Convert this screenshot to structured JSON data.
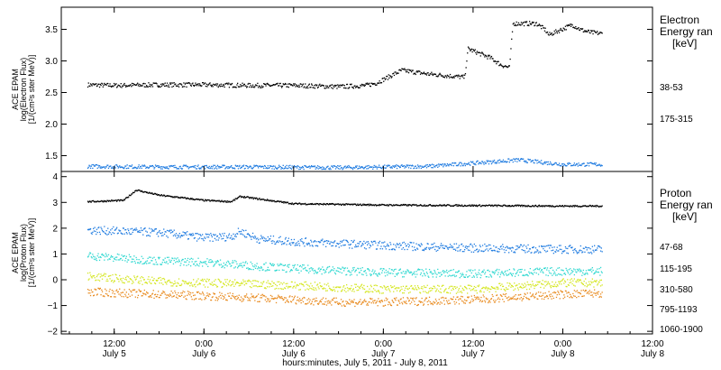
{
  "chart_data": [
    {
      "type": "scatter",
      "panel": "electron",
      "ylabel": [
        "ACE EPAM",
        "log(Electron Flux)",
        "[1/(cm²s ster MeV)]"
      ],
      "ylim": [
        1.25,
        3.85
      ],
      "yticks": [
        1.5,
        2.0,
        2.5,
        3.0,
        3.5
      ],
      "ytick_labels": [
        "1.5",
        "2.0",
        "2.5",
        "3.0",
        "3.5"
      ],
      "legend_title": [
        "Electron",
        "Energy ran",
        "[keV]"
      ],
      "legend_placement": "right",
      "series": [
        {
          "name": "38-53",
          "color": "#000000",
          "x": [
            0.35,
            0.5,
            0.75,
            1.0,
            1.25,
            1.5,
            1.75,
            1.9,
            1.96,
            2.1,
            2.25,
            2.45,
            2.47,
            2.6,
            2.65,
            2.7,
            2.72,
            2.85,
            2.9,
            2.92,
            3.05,
            3.1,
            3.15,
            3.22
          ],
          "values": [
            2.63,
            2.62,
            2.63,
            2.63,
            2.62,
            2.62,
            2.6,
            2.62,
            2.66,
            2.86,
            2.8,
            2.75,
            3.2,
            3.05,
            2.95,
            2.9,
            3.6,
            3.6,
            3.5,
            3.42,
            3.58,
            3.5,
            3.46,
            3.44
          ]
        },
        {
          "name": "175-315",
          "color": "#1e7be0",
          "x": [
            0.35,
            0.75,
            1.25,
            1.75,
            2.25,
            2.75,
            3.0,
            3.22
          ],
          "values": [
            1.34,
            1.33,
            1.33,
            1.32,
            1.34,
            1.44,
            1.37,
            1.37
          ]
        }
      ]
    },
    {
      "type": "scatter",
      "panel": "proton",
      "ylabel": [
        "ACE EPAM",
        "log(Proton Flux)",
        "[1/(cm²s ster MeV)]"
      ],
      "ylim": [
        -2.1,
        4.2
      ],
      "yticks": [
        -2,
        -1,
        0,
        1,
        2,
        3,
        4
      ],
      "ytick_labels": [
        "−2",
        "−1",
        "0",
        "1",
        "2",
        "3",
        "4"
      ],
      "legend_title": [
        "Proton",
        "Energy ran",
        "[keV]"
      ],
      "legend_placement": "right",
      "series": [
        {
          "name": "47-68",
          "color": "#000000",
          "x": [
            0.35,
            0.55,
            0.62,
            0.75,
            1.0,
            1.15,
            1.2,
            1.5,
            2.0,
            2.5,
            3.0,
            3.22
          ],
          "values": [
            3.05,
            3.1,
            3.5,
            3.3,
            3.1,
            3.05,
            3.25,
            2.97,
            2.92,
            2.9,
            2.88,
            2.88
          ]
        },
        {
          "name": "115-195",
          "color": "#1e7be0",
          "x": [
            0.35,
            0.75,
            1.0,
            1.15,
            1.2,
            1.3,
            1.5,
            2.0,
            2.5,
            3.0,
            3.22
          ],
          "values": [
            1.95,
            1.85,
            1.65,
            1.7,
            1.9,
            1.6,
            1.5,
            1.35,
            1.25,
            1.2,
            1.2
          ]
        },
        {
          "name": "310-580",
          "color": "#2ed8d0",
          "x": [
            0.35,
            0.75,
            1.0,
            1.5,
            2.0,
            2.5,
            3.0,
            3.22
          ],
          "values": [
            0.95,
            0.75,
            0.7,
            0.45,
            0.3,
            0.25,
            0.35,
            0.35
          ]
        },
        {
          "name": "795-1193",
          "color": "#d4e61e",
          "x": [
            0.35,
            0.75,
            1.0,
            1.5,
            2.0,
            2.5,
            3.0,
            3.22
          ],
          "values": [
            0.15,
            -0.05,
            -0.1,
            -0.2,
            -0.35,
            -0.35,
            -0.1,
            -0.1
          ]
        },
        {
          "name": "1060-1900",
          "color": "#e8891c",
          "x": [
            0.35,
            0.75,
            1.0,
            1.5,
            1.75,
            2.0,
            2.5,
            3.0,
            3.22
          ],
          "values": [
            -0.45,
            -0.55,
            -0.6,
            -0.75,
            -0.85,
            -0.85,
            -0.75,
            -0.55,
            -0.5
          ]
        }
      ]
    }
  ],
  "x_axis": {
    "xlim": [
      0.205,
      3.5
    ],
    "ticks": [
      0.5,
      1.0,
      1.5,
      2.0,
      2.5,
      3.0,
      3.5
    ],
    "tick_labels": [
      [
        "12:00",
        "July 5"
      ],
      [
        "0:00",
        "July 6"
      ],
      [
        "12:00",
        "July 6"
      ],
      [
        "0:00",
        "July 7"
      ],
      [
        "12:00",
        "July 7"
      ],
      [
        "0:00",
        "July 8"
      ],
      [
        "12:00",
        "July 8"
      ]
    ],
    "xlabel": "hours:minutes, July  5, 2011 - July  8, 2011"
  }
}
